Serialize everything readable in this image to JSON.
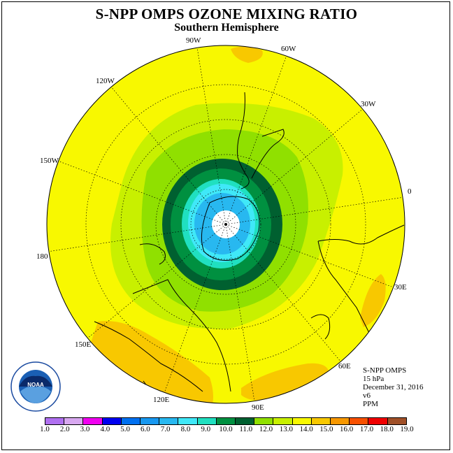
{
  "header": {
    "title": "S-NPP OMPS OZONE MIXING RATIO",
    "subtitle": "Southern Hemisphere"
  },
  "map": {
    "projection": "south polar stereographic",
    "longitude_labels": [
      "90W",
      "60W",
      "30W",
      "0",
      "30E",
      "60E",
      "90E",
      "120E",
      "150E",
      "180",
      "150W",
      "120W"
    ],
    "contour_levels_ppm": [
      9.0,
      10.0,
      11.0,
      12.0,
      13.0,
      14.0,
      15.0
    ],
    "outer_field_ppm": "14.0-15.0",
    "core_field_ppm": "< 9.0"
  },
  "info": {
    "instrument": "S-NPP OMPS",
    "level": "15 hPa",
    "date": "December 31, 2016",
    "version": "v6",
    "units": "PPM"
  },
  "colorbar": {
    "ticks": [
      "1.0",
      "2.0",
      "3.0",
      "4.0",
      "5.0",
      "6.0",
      "7.0",
      "8.0",
      "9.0",
      "10.0",
      "11.0",
      "12.0",
      "13.0",
      "14.0",
      "15.0",
      "16.0",
      "17.0",
      "18.0",
      "19.0"
    ],
    "colors": [
      "#b070f0",
      "#d8a8f0",
      "#f000f0",
      "#0000f0",
      "#0070f0",
      "#1898f0",
      "#28b8f0",
      "#40e8f8",
      "#20e0c0",
      "#009040",
      "#006030",
      "#90e000",
      "#c8f000",
      "#f8f800",
      "#f8c800",
      "#f89800",
      "#f85000",
      "#f00000",
      "#a05028"
    ]
  },
  "logo": {
    "text": "NOAA",
    "ring_text": "NATIONAL OCEANIC AND ATMOSPHERIC ADMINISTRATION · U.S. DEPARTMENT OF COMMERCE"
  }
}
